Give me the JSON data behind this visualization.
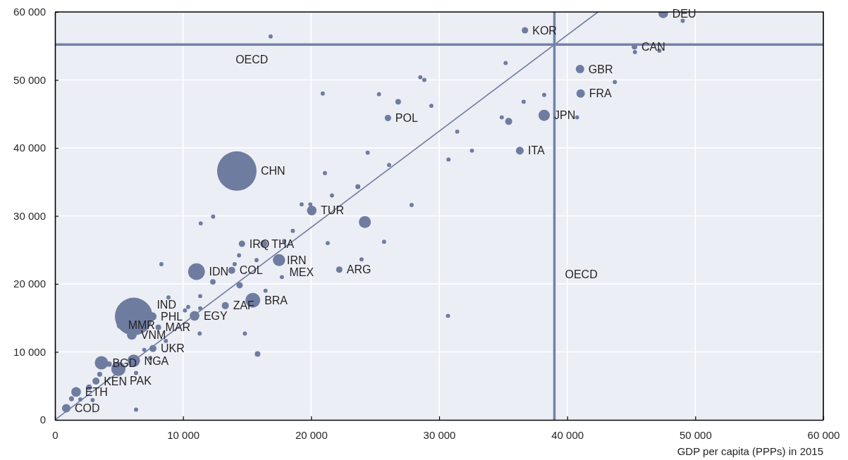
{
  "chart_data": {
    "type": "bubble",
    "xlabel": "GDP per capita (PPPs) in 2015",
    "xlim": [
      0,
      60000
    ],
    "ylim": [
      0,
      60000
    ],
    "xticks": [
      0,
      {
        "value": 10000,
        "label": "10 000"
      },
      {
        "value": 20000,
        "label": "20 000"
      },
      {
        "value": 30000,
        "label": "30 000"
      },
      {
        "value": 40000,
        "label": "40 000"
      },
      {
        "value": 50000,
        "label": "50 000"
      },
      {
        "value": 60000,
        "label": "60 000"
      }
    ],
    "yticks": [
      0,
      {
        "value": 10000,
        "label": "10 000"
      },
      {
        "value": 20000,
        "label": "20 000"
      },
      {
        "value": 30000,
        "label": "30 000"
      },
      {
        "value": 40000,
        "label": "40 000"
      },
      {
        "value": 50000,
        "label": "50 000"
      },
      {
        "value": 60000,
        "label": "60 000"
      }
    ],
    "grid": true,
    "series": [
      {
        "color": "#6e7ca0",
        "x": [
          14200,
          6150,
          11050,
          15450,
          4950,
          3630,
          6150,
          17500,
          17400,
          38200,
          6000,
          7600,
          5100,
          20050,
          10900,
          1650,
          880,
          41000,
          41050,
          47500,
          36300,
          36700,
          45250,
          26000,
          22200,
          14600,
          16300,
          13800,
          13300,
          7650,
          8070,
          3200,
          24200,
          35430,
          34890,
          31410,
          26800,
          24420,
          26090,
          21080,
          23650,
          21630,
          27850,
          12350,
          11380,
          18570,
          25700,
          21300,
          17890,
          14370,
          14030,
          17720,
          12330,
          14420,
          11340,
          11340,
          8860,
          10400,
          10150,
          11300,
          14830,
          15820,
          6970,
          8660,
          7430,
          4220,
          6330,
          6330,
          1290,
          2660,
          2940,
          3490,
          1980,
          16840,
          20910,
          25300,
          28530,
          28840,
          29390,
          32560,
          30730,
          49020,
          45290,
          43720,
          38200,
          36600,
          40770,
          35190,
          30690,
          19260,
          19940,
          15740,
          8310,
          23940,
          16440,
          47200
        ],
        "values": [
          36600,
          15200,
          21800,
          17600,
          7500,
          8400,
          8700,
          23500,
          23500,
          44800,
          12500,
          15200,
          13900,
          30800,
          15300,
          4100,
          1700,
          51600,
          48000,
          59800,
          39600,
          57300,
          54900,
          44400,
          22100,
          25900,
          25900,
          22000,
          16800,
          10500,
          13600,
          5700,
          29100,
          43900,
          44500,
          42400,
          46800,
          39300,
          37500,
          36300,
          34300,
          33000,
          31600,
          29900,
          28900,
          27800,
          26200,
          26000,
          26300,
          24200,
          22900,
          21000,
          20300,
          19800,
          16400,
          18200,
          18000,
          16600,
          16100,
          12700,
          12700,
          9700,
          10300,
          11600,
          9100,
          8200,
          1500,
          6900,
          3100,
          4800,
          2900,
          6700,
          3000,
          56400,
          48000,
          47900,
          50400,
          50000,
          46200,
          39600,
          38300,
          58700,
          54100,
          49700,
          47800,
          46800,
          44500,
          52500,
          15300,
          31700,
          31700,
          23500,
          22900,
          23600,
          19000,
          54300
        ],
        "sizes": [
          1,
          0.91,
          0.18,
          0.14,
          0.13,
          0.115,
          0.1,
          0.092,
          0.06,
          0.082,
          0.06,
          0.046,
          0.032,
          0.06,
          0.06,
          0.06,
          0.046,
          0.046,
          0.046,
          0.06,
          0.039,
          0.026,
          0.02,
          0.026,
          0.026,
          0.026,
          0.032,
          0.032,
          0.032,
          0.032,
          0.02,
          0.032,
          0.092,
          0.032,
          0.011,
          0.011,
          0.02,
          0.011,
          0.011,
          0.011,
          0.016,
          0.011,
          0.011,
          0.011,
          0.011,
          0.011,
          0.011,
          0.011,
          0.011,
          0.011,
          0.011,
          0.011,
          0.02,
          0.026,
          0.011,
          0.011,
          0.011,
          0.011,
          0.011,
          0.011,
          0.011,
          0.02,
          0.011,
          0.011,
          0.011,
          0.02,
          0.011,
          0.011,
          0.016,
          0.02,
          0.011,
          0.016,
          0.011,
          0.011,
          0.011,
          0.011,
          0.011,
          0.011,
          0.011,
          0.011,
          0.011,
          0.011,
          0.011,
          0.011,
          0.011,
          0.011,
          0.011,
          0.011,
          0.011,
          0.011,
          0.011,
          0.011,
          0.011,
          0.011,
          0.011,
          0.011
        ]
      },
      {
        "type": "line",
        "color": "#6e7ca0",
        "x": [
          0,
          42400
        ],
        "values": [
          0,
          60000
        ]
      }
    ],
    "ref_lines": [
      {
        "axis": "x",
        "value": 39000,
        "label": "OECD",
        "color": "#7282aa"
      },
      {
        "axis": "y",
        "value": 55200,
        "label": "OECD",
        "color": "#7282aa"
      }
    ],
    "annotations": [
      {
        "text": "CHN",
        "x": 14200,
        "y": 36600
      },
      {
        "text": "IND",
        "x": 6150,
        "y": 15200
      },
      {
        "text": "IDN",
        "x": 11050,
        "y": 21800
      },
      {
        "text": "BRA",
        "x": 15450,
        "y": 17600
      },
      {
        "text": "PAK",
        "x": 4950,
        "y": 7500
      },
      {
        "text": "BGD",
        "x": 3630,
        "y": 8400
      },
      {
        "text": "NGA",
        "x": 6150,
        "y": 8700
      },
      {
        "text": "MEX",
        "x": 17500,
        "y": 23500
      },
      {
        "text": "IRN",
        "x": 17400,
        "y": 23500
      },
      {
        "text": "JPN",
        "x": 38200,
        "y": 44800
      },
      {
        "text": "VNM",
        "x": 6000,
        "y": 12500
      },
      {
        "text": "PHL",
        "x": 7600,
        "y": 15200
      },
      {
        "text": "MMR",
        "x": 5100,
        "y": 13900
      },
      {
        "text": "TUR",
        "x": 20050,
        "y": 30800
      },
      {
        "text": "EGY",
        "x": 10900,
        "y": 15300
      },
      {
        "text": "ETH",
        "x": 1650,
        "y": 4100
      },
      {
        "text": "COD",
        "x": 880,
        "y": 1700
      },
      {
        "text": "GBR",
        "x": 41000,
        "y": 51600
      },
      {
        "text": "FRA",
        "x": 41050,
        "y": 48000
      },
      {
        "text": "DEU",
        "x": 47500,
        "y": 59800
      },
      {
        "text": "ITA",
        "x": 36300,
        "y": 39600
      },
      {
        "text": "KOR",
        "x": 36700,
        "y": 57300
      },
      {
        "text": "CAN",
        "x": 45250,
        "y": 54900
      },
      {
        "text": "POL",
        "x": 26000,
        "y": 44400
      },
      {
        "text": "ARG",
        "x": 22200,
        "y": 22100
      },
      {
        "text": "IRQ",
        "x": 14600,
        "y": 25900
      },
      {
        "text": "THA",
        "x": 16300,
        "y": 25900
      },
      {
        "text": "COL",
        "x": 13800,
        "y": 22000
      },
      {
        "text": "ZAF",
        "x": 13300,
        "y": 16800
      },
      {
        "text": "UKR",
        "x": 7650,
        "y": 10500
      },
      {
        "text": "MAR",
        "x": 8070,
        "y": 13600
      },
      {
        "text": "KEN",
        "x": 3200,
        "y": 5700
      }
    ]
  }
}
